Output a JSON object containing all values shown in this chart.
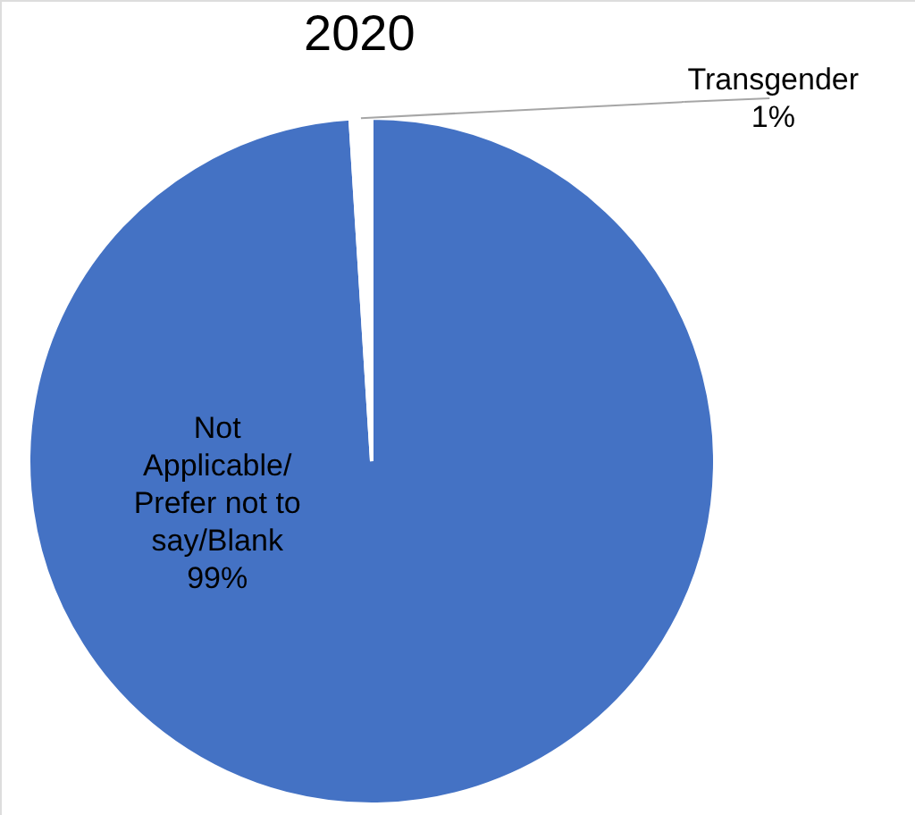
{
  "chart_data": {
    "type": "pie",
    "title": "2020",
    "categories": [
      "Not Applicable/ Prefer not to say/Blank",
      "Transgender"
    ],
    "values": [
      99,
      1
    ],
    "colors": [
      "#4472c4",
      "#ffffff"
    ],
    "value_labels": [
      "99%",
      "1%"
    ]
  }
}
